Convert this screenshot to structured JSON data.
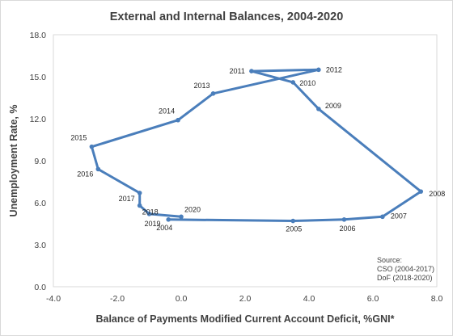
{
  "chart_data": {
    "type": "scatter",
    "title": "External and Internal Balances, 2004-2020",
    "xlabel": "Balance of Payments Modified Current Account Deficit, %GNI*",
    "ylabel": "Unemployment Rate, %",
    "xlim": [
      -4.0,
      8.0
    ],
    "ylim": [
      0.0,
      18.0
    ],
    "x_ticks": [
      "-4.0",
      "-2.0",
      "0.0",
      "2.0",
      "4.0",
      "6.0",
      "8.0"
    ],
    "y_ticks": [
      "0.0",
      "3.0",
      "6.0",
      "9.0",
      "12.0",
      "15.0",
      "18.0"
    ],
    "grid": false,
    "line_color": "#4a7ebb",
    "series": [
      {
        "points": [
          {
            "label": "2004",
            "x": -0.4,
            "y": 4.8
          },
          {
            "label": "2005",
            "x": 3.5,
            "y": 4.7
          },
          {
            "label": "2006",
            "x": 5.1,
            "y": 4.8
          },
          {
            "label": "2007",
            "x": 6.3,
            "y": 5.0
          },
          {
            "label": "2008",
            "x": 7.5,
            "y": 6.8
          },
          {
            "label": "2009",
            "x": 4.3,
            "y": 12.7
          },
          {
            "label": "2010",
            "x": 3.5,
            "y": 14.6
          },
          {
            "label": "2011",
            "x": 2.2,
            "y": 15.4
          },
          {
            "label": "2012",
            "x": 4.3,
            "y": 15.5
          },
          {
            "label": "2013",
            "x": 1.0,
            "y": 13.8
          },
          {
            "label": "2014",
            "x": -0.1,
            "y": 11.9
          },
          {
            "label": "2015",
            "x": -2.8,
            "y": 10.0
          },
          {
            "label": "2016",
            "x": -2.6,
            "y": 8.4
          },
          {
            "label": "2017",
            "x": -1.3,
            "y": 6.7
          },
          {
            "label": "2018",
            "x": -1.3,
            "y": 5.8
          },
          {
            "label": "2019",
            "x": -1.0,
            "y": 5.2
          },
          {
            "label": "2020",
            "x": 0.0,
            "y": 5.0
          }
        ]
      }
    ],
    "source_note": [
      "Source:",
      "CSO (2004-2017)",
      "DoF (2018-2020)"
    ]
  }
}
